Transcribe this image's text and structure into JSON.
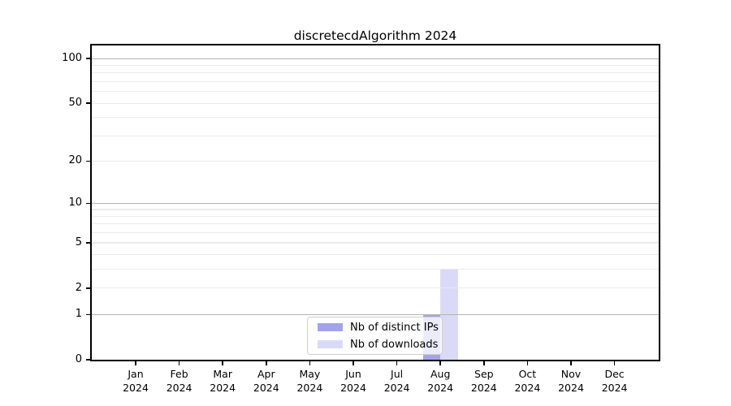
{
  "window": {
    "background": "#ffffff"
  },
  "chart_data": {
    "type": "bar",
    "title": "discretecdAlgorithm 2024",
    "categories": [
      "Jan",
      "Feb",
      "Mar",
      "Apr",
      "May",
      "Jun",
      "Jul",
      "Aug",
      "Sep",
      "Oct",
      "Nov",
      "Dec"
    ],
    "category_year": "2024",
    "series": [
      {
        "name": "Nb of distinct IPs",
        "color": "#a3a3ec",
        "values": [
          0,
          0,
          0,
          0,
          0,
          0,
          0,
          1,
          0,
          0,
          0,
          0
        ]
      },
      {
        "name": "Nb of downloads",
        "color": "#dadaf8",
        "values": [
          0,
          0,
          0,
          0,
          0,
          0,
          0,
          3,
          0,
          0,
          0,
          0
        ]
      }
    ],
    "y_scale": "log10(1+v)",
    "y_ticks": [
      0,
      1,
      2,
      5,
      10,
      20,
      50,
      100
    ],
    "y_major_gridlines": [
      1,
      10,
      100
    ],
    "y_minor_gridlines": [
      2,
      3,
      4,
      5,
      6,
      7,
      8,
      9,
      20,
      30,
      40,
      50,
      60,
      70,
      80,
      90
    ],
    "ylim": [
      0,
      121
    ],
    "xlabel": "",
    "ylabel": "",
    "grid": "horizontal",
    "legend_position": "bottom-center"
  },
  "colors": {
    "grid_major": "#b3b3b3",
    "grid_minor": "#ebebeb",
    "axis_frame": "#000000",
    "tick": "#000000",
    "text": "#000000"
  }
}
